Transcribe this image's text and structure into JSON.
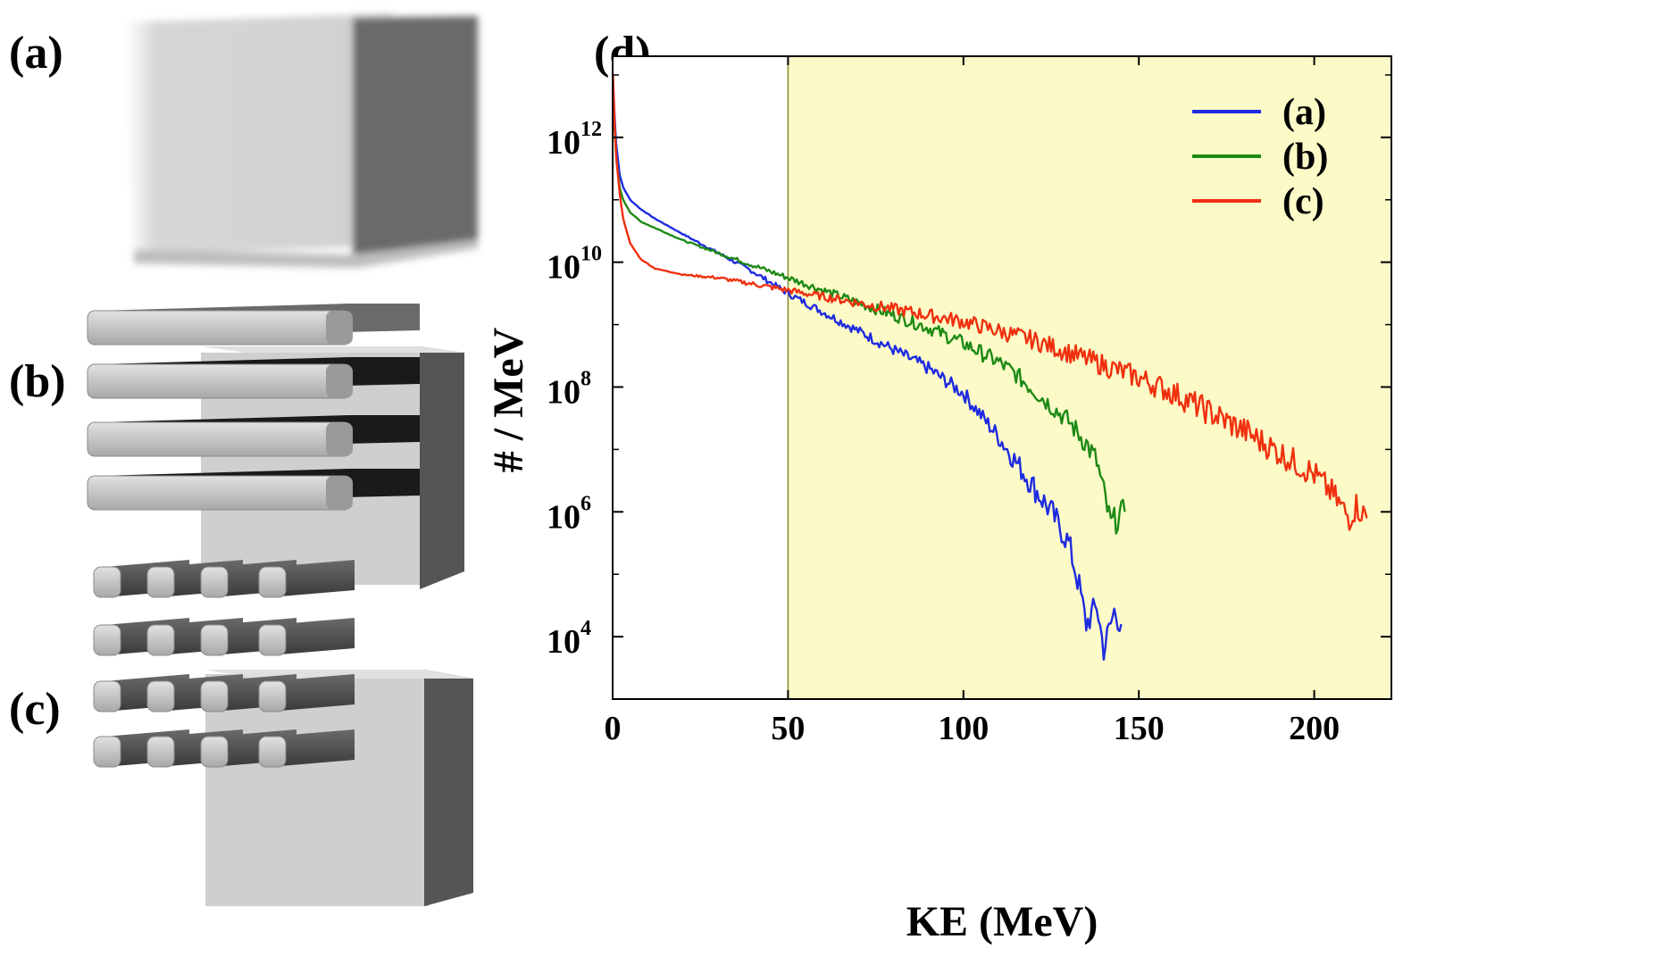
{
  "panels": {
    "a": {
      "label": "(a)"
    },
    "b": {
      "label": "(b)"
    },
    "c": {
      "label": "(c)"
    },
    "d": {
      "label": "(d)"
    }
  },
  "colors": {
    "series_a": "#1e2be0",
    "series_b": "#1f8a16",
    "series_c": "#f0300f",
    "highlight": "#fcfbc8",
    "block_light": "#cfcfcf",
    "block_dark": "#5a5a5a"
  },
  "chart_data": {
    "type": "line",
    "xlabel": "KE (MeV)",
    "ylabel": "# / MeV",
    "xlim": [
      0,
      222
    ],
    "ylim_log10": [
      3,
      13.3
    ],
    "yscale": "log",
    "x_ticks": [
      {
        "value": 0,
        "label": "0"
      },
      {
        "value": 50,
        "label": "50"
      },
      {
        "value": 100,
        "label": "100"
      },
      {
        "value": 150,
        "label": "150"
      },
      {
        "value": 200,
        "label": "200"
      }
    ],
    "y_ticks": [
      {
        "exp": 12,
        "base": "10",
        "sup": "12"
      },
      {
        "exp": 10,
        "base": "10",
        "sup": "10"
      },
      {
        "exp": 8,
        "base": "10",
        "sup": "8"
      },
      {
        "exp": 6,
        "base": "10",
        "sup": "6"
      },
      {
        "exp": 4,
        "base": "10",
        "sup": "4"
      }
    ],
    "highlight_region": {
      "x_from": 50,
      "x_to": 222
    },
    "legend_position": "top-right",
    "series": [
      {
        "name": "(a)",
        "color_key": "series_a",
        "x": [
          0.1,
          0.5,
          1,
          2,
          3,
          5,
          8,
          12,
          20,
          30,
          40,
          50,
          60,
          70,
          80,
          90,
          100,
          105,
          110,
          115,
          120,
          125,
          130,
          133,
          135,
          138,
          140,
          143,
          145
        ],
        "log10": [
          12.9,
          12.4,
          11.9,
          11.4,
          11.2,
          11.0,
          10.85,
          10.7,
          10.45,
          10.15,
          9.85,
          9.5,
          9.2,
          8.9,
          8.6,
          8.3,
          7.9,
          7.55,
          7.2,
          6.8,
          6.4,
          6.0,
          5.5,
          4.8,
          4.2,
          4.5,
          3.8,
          4.4,
          4.2
        ]
      },
      {
        "name": "(b)",
        "color_key": "series_b",
        "x": [
          0.1,
          0.5,
          1,
          2,
          3,
          5,
          8,
          12,
          20,
          30,
          40,
          50,
          60,
          70,
          80,
          90,
          100,
          110,
          115,
          120,
          125,
          130,
          135,
          138,
          140,
          142,
          144,
          146
        ],
        "log10": [
          12.9,
          12.2,
          11.7,
          11.2,
          11.0,
          10.8,
          10.65,
          10.55,
          10.35,
          10.15,
          9.95,
          9.75,
          9.55,
          9.35,
          9.15,
          8.95,
          8.7,
          8.4,
          8.2,
          7.95,
          7.7,
          7.45,
          7.1,
          6.8,
          6.3,
          5.8,
          5.9,
          6.0
        ]
      },
      {
        "name": "(c)",
        "color_key": "series_c",
        "x": [
          0.1,
          0.5,
          1,
          2,
          3,
          5,
          8,
          12,
          20,
          30,
          40,
          50,
          60,
          70,
          80,
          90,
          100,
          110,
          120,
          130,
          140,
          150,
          160,
          170,
          180,
          190,
          200,
          205,
          210,
          212,
          215
        ],
        "log10": [
          13.0,
          12.3,
          11.7,
          11.1,
          10.7,
          10.3,
          10.05,
          9.9,
          9.8,
          9.75,
          9.65,
          9.55,
          9.45,
          9.35,
          9.25,
          9.15,
          9.05,
          8.9,
          8.75,
          8.55,
          8.35,
          8.15,
          7.9,
          7.6,
          7.3,
          6.95,
          6.6,
          6.3,
          5.9,
          6.1,
          5.9
        ]
      }
    ]
  }
}
